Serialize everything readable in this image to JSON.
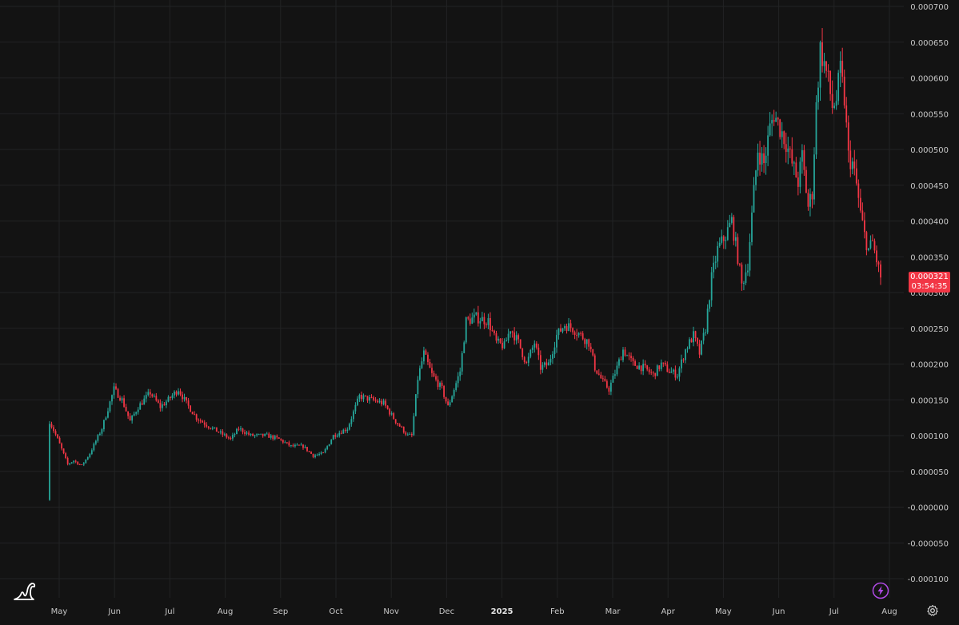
{
  "chart_data": {
    "type": "candlestick",
    "y_ticks": [
      "0.000700",
      "0.000650",
      "0.000600",
      "0.000550",
      "0.000500",
      "0.000450",
      "0.000400",
      "0.000350",
      "0.000300",
      "0.000250",
      "0.000200",
      "0.000150",
      "0.000100",
      "0.000050",
      "-0.000000",
      "-0.000050",
      "-0.000100"
    ],
    "x_ticks": [
      {
        "label": "May",
        "bold": false
      },
      {
        "label": "Jun",
        "bold": false
      },
      {
        "label": "Jul",
        "bold": false
      },
      {
        "label": "Aug",
        "bold": false
      },
      {
        "label": "Sep",
        "bold": false
      },
      {
        "label": "Oct",
        "bold": false
      },
      {
        "label": "Nov",
        "bold": false
      },
      {
        "label": "Dec",
        "bold": false
      },
      {
        "label": "2025",
        "bold": true
      },
      {
        "label": "Feb",
        "bold": false
      },
      {
        "label": "Mar",
        "bold": false
      },
      {
        "label": "Apr",
        "bold": false
      },
      {
        "label": "May",
        "bold": false
      },
      {
        "label": "Jun",
        "bold": false
      },
      {
        "label": "Jul",
        "bold": false
      },
      {
        "label": "Aug",
        "bold": false
      }
    ],
    "y_range": [
      -0.0001,
      0.0007
    ],
    "last_price": "0.000321",
    "countdown": "03:54:35",
    "up_color": "#26a69a",
    "down_color": "#f23645",
    "anchors": [
      [
        0,
        0.00012
      ],
      [
        4,
        9.5e-05
      ],
      [
        9,
        6e-05
      ],
      [
        12,
        6.5e-05
      ],
      [
        16,
        5.8e-05
      ],
      [
        20,
        7.5e-05
      ],
      [
        26,
        0.00011
      ],
      [
        32,
        0.000165
      ],
      [
        36,
        0.00015
      ],
      [
        40,
        0.00012
      ],
      [
        44,
        0.00014
      ],
      [
        50,
        0.00016
      ],
      [
        55,
        0.00014
      ],
      [
        59,
        0.00015
      ],
      [
        64,
        0.000165
      ],
      [
        68,
        0.000145
      ],
      [
        73,
        0.000125
      ],
      [
        78,
        0.000115
      ],
      [
        84,
        0.000105
      ],
      [
        90,
        9.5e-05
      ],
      [
        94,
        0.00011
      ],
      [
        100,
        0.0001
      ],
      [
        108,
        0.0001
      ],
      [
        114,
        9.5e-05
      ],
      [
        120,
        8.5e-05
      ],
      [
        126,
        8.5e-05
      ],
      [
        131,
        7.2e-05
      ],
      [
        136,
        7.5e-05
      ],
      [
        141,
        0.0001
      ],
      [
        148,
        0.00011
      ],
      [
        154,
        0.000155
      ],
      [
        160,
        0.00015
      ],
      [
        166,
        0.000145
      ],
      [
        172,
        0.00012
      ],
      [
        178,
        0.0001
      ],
      [
        180,
        0.0001
      ],
      [
        183,
        0.00018
      ],
      [
        186,
        0.000215
      ],
      [
        190,
        0.000185
      ],
      [
        195,
        0.000165
      ],
      [
        198,
        0.00014
      ],
      [
        204,
        0.00019
      ],
      [
        207,
        0.00026
      ],
      [
        212,
        0.000265
      ],
      [
        218,
        0.00026
      ],
      [
        222,
        0.00023
      ],
      [
        226,
        0.000225
      ],
      [
        229,
        0.00025
      ],
      [
        233,
        0.00023
      ],
      [
        237,
        0.0002
      ],
      [
        241,
        0.00023
      ],
      [
        244,
        0.000195
      ],
      [
        248,
        0.0002
      ],
      [
        252,
        0.00024
      ],
      [
        256,
        0.000255
      ],
      [
        260,
        0.00025
      ],
      [
        264,
        0.00024
      ],
      [
        268,
        0.00023
      ],
      [
        271,
        0.000195
      ],
      [
        275,
        0.000175
      ],
      [
        278,
        0.000165
      ],
      [
        282,
        0.000195
      ],
      [
        285,
        0.00022
      ],
      [
        290,
        0.0002
      ],
      [
        295,
        0.000195
      ],
      [
        300,
        0.000185
      ],
      [
        304,
        0.0002
      ],
      [
        308,
        0.00019
      ],
      [
        312,
        0.000185
      ],
      [
        316,
        0.00022
      ],
      [
        320,
        0.00024
      ],
      [
        323,
        0.000215
      ],
      [
        326,
        0.00025
      ],
      [
        329,
        0.00032
      ],
      [
        332,
        0.00036
      ],
      [
        336,
        0.00038
      ],
      [
        339,
        0.0004
      ],
      [
        342,
        0.00035
      ],
      [
        344,
        0.00031
      ],
      [
        347,
        0.00034
      ],
      [
        350,
        0.00044
      ],
      [
        352,
        0.0005
      ],
      [
        355,
        0.00048
      ],
      [
        358,
        0.00053
      ],
      [
        360,
        0.00055
      ],
      [
        363,
        0.00053
      ],
      [
        366,
        0.00051
      ],
      [
        369,
        0.00048
      ],
      [
        372,
        0.000455
      ],
      [
        374,
        0.00049
      ],
      [
        377,
        0.00042
      ],
      [
        379,
        0.00044
      ],
      [
        381,
        0.00056
      ],
      [
        383,
        0.00064
      ],
      [
        385,
        0.00062
      ],
      [
        387,
        0.000595
      ],
      [
        389,
        0.00056
      ],
      [
        391,
        0.00057
      ],
      [
        393,
        0.00061
      ],
      [
        395,
        0.00057
      ],
      [
        397,
        0.00049
      ],
      [
        399,
        0.00048
      ],
      [
        401,
        0.00045
      ],
      [
        403,
        0.00041
      ],
      [
        405,
        0.00038
      ],
      [
        407,
        0.00036
      ],
      [
        409,
        0.00037
      ],
      [
        411,
        0.000345
      ],
      [
        413,
        0.000321
      ]
    ]
  }
}
